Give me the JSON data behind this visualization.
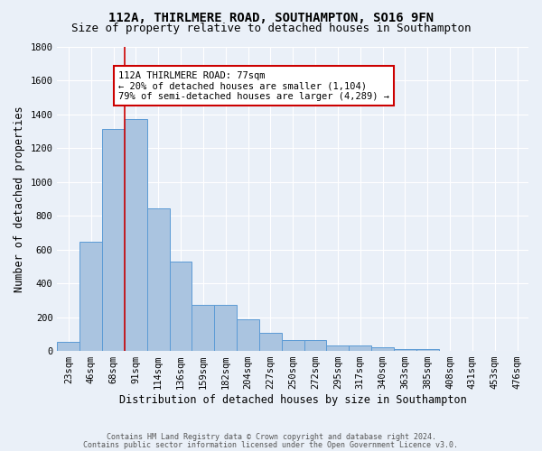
{
  "title_line1": "112A, THIRLMERE ROAD, SOUTHAMPTON, SO16 9FN",
  "title_line2": "Size of property relative to detached houses in Southampton",
  "xlabel": "Distribution of detached houses by size in Southampton",
  "ylabel": "Number of detached properties",
  "footer_line1": "Contains HM Land Registry data © Crown copyright and database right 2024.",
  "footer_line2": "Contains public sector information licensed under the Open Government Licence v3.0.",
  "bar_labels": [
    "23sqm",
    "46sqm",
    "68sqm",
    "91sqm",
    "114sqm",
    "136sqm",
    "159sqm",
    "182sqm",
    "204sqm",
    "227sqm",
    "250sqm",
    "272sqm",
    "295sqm",
    "317sqm",
    "340sqm",
    "363sqm",
    "385sqm",
    "408sqm",
    "431sqm",
    "453sqm",
    "476sqm"
  ],
  "bar_values": [
    55,
    645,
    1310,
    1370,
    845,
    530,
    275,
    275,
    185,
    105,
    65,
    65,
    35,
    35,
    20,
    10,
    10,
    0,
    0,
    0,
    0
  ],
  "bar_color": "#aac4e0",
  "bar_edge_color": "#5b9bd5",
  "vline_x": 2.5,
  "vline_color": "#cc0000",
  "annotation_text": "112A THIRLMERE ROAD: 77sqm\n← 20% of detached houses are smaller (1,104)\n79% of semi-detached houses are larger (4,289) →",
  "annotation_box_color": "#ffffff",
  "annotation_box_edge": "#cc0000",
  "ylim": [
    0,
    1800
  ],
  "yticks": [
    0,
    200,
    400,
    600,
    800,
    1000,
    1200,
    1400,
    1600,
    1800
  ],
  "bg_color": "#eaf0f8",
  "grid_color": "#ffffff",
  "title_fontsize": 10,
  "subtitle_fontsize": 9,
  "axis_label_fontsize": 8.5,
  "tick_fontsize": 7.5,
  "annotation_fontsize": 7.5,
  "footer_fontsize": 6.0
}
